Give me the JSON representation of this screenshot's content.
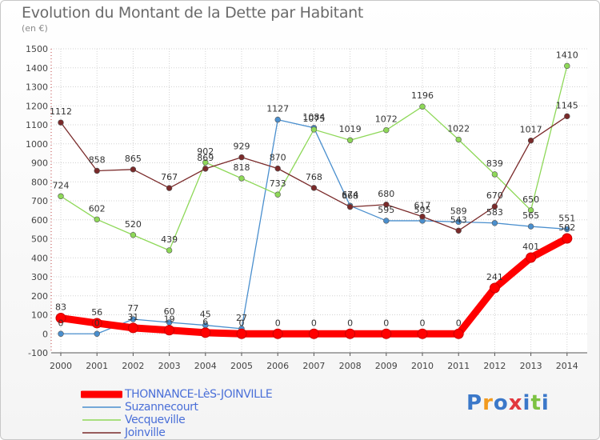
{
  "title": "Evolution du Montant de la Dette par Habitant",
  "subtitle": "(en €)",
  "brand": {
    "text": "Proxiti",
    "colors": [
      "#3b78c9",
      "#f29a1e",
      "#3b78c9",
      "#e2383f",
      "#3b78c9",
      "#7cc242",
      "#3b78c9"
    ]
  },
  "chart_data": {
    "type": "line",
    "title": "Evolution du Montant de la Dette par Habitant",
    "subtitle": "(en €)",
    "x": [
      "2000",
      "2001",
      "2002",
      "2003",
      "2004",
      "2005",
      "2006",
      "2007",
      "2008",
      "2009",
      "2010",
      "2011",
      "2012",
      "2013",
      "2014"
    ],
    "ylim": [
      -100,
      1500
    ],
    "yticks": [
      "-100",
      "0",
      "100",
      "200",
      "300",
      "400",
      "500",
      "600",
      "700",
      "800",
      "900",
      "1000",
      "1100",
      "1200",
      "1300",
      "1400",
      "1500"
    ],
    "grid": true,
    "legend_position": "bottom-left",
    "series": [
      {
        "name": "THONNANCE-LèS-JOINVILLE",
        "color": "#ff0000",
        "values": [
          83,
          56,
          31,
          19,
          6,
          0,
          0,
          0,
          0,
          0,
          0,
          0,
          241,
          401,
          502
        ],
        "labels": [
          "83",
          "56",
          "31",
          "19",
          "6",
          "0",
          "0",
          "0",
          "0",
          "0",
          "0",
          "0",
          "241",
          "401",
          "502"
        ]
      },
      {
        "name": "Suzannecourt",
        "color": "#4a8fce",
        "values": [
          0,
          0,
          77,
          60,
          45,
          27,
          1127,
          1084,
          674,
          595,
          595,
          589,
          583,
          565,
          551
        ],
        "labels": [
          "0",
          "0",
          "77",
          "60",
          "45",
          "27",
          "1127",
          "1084",
          "674",
          "595",
          "595",
          "589",
          "583",
          "565",
          "551"
        ]
      },
      {
        "name": "Vecqueville",
        "color": "#8ed858",
        "values": [
          724,
          602,
          520,
          439,
          902,
          818,
          733,
          1075,
          1019,
          1072,
          1196,
          1022,
          839,
          650,
          1410
        ],
        "labels": [
          "724",
          "602",
          "520",
          "439",
          "902",
          "818",
          "733",
          "1075",
          "1019",
          "1072",
          "1196",
          "1022",
          "839",
          "650",
          "1410"
        ]
      },
      {
        "name": "Joinville",
        "color": "#7a2a2a",
        "values": [
          1112,
          858,
          865,
          767,
          869,
          929,
          870,
          768,
          668,
          680,
          617,
          543,
          670,
          1017,
          1145
        ],
        "labels": [
          "1112",
          "858",
          "865",
          "767",
          "869",
          "929",
          "870",
          "768",
          "668",
          "680",
          "617",
          "543",
          "670",
          "1017",
          "1145"
        ]
      }
    ]
  }
}
